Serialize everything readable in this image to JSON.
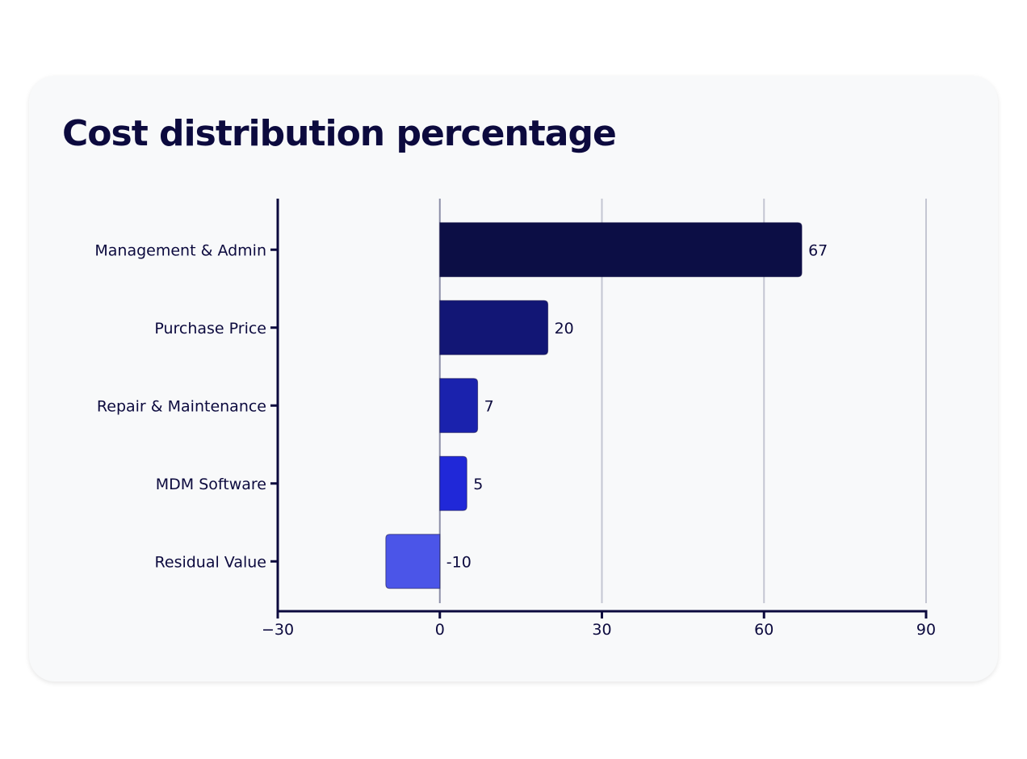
{
  "chart_data": {
    "type": "bar",
    "orientation": "horizontal",
    "title": "Cost distribution percentage",
    "categories": [
      "Management & Admin",
      "Purchase Price",
      "Repair & Maintenance",
      "MDM Software",
      "Residual Value"
    ],
    "values": [
      67,
      20,
      7,
      5,
      -10
    ],
    "value_labels": [
      "67",
      "20",
      "7",
      "5",
      "-10"
    ],
    "xlim": [
      -30,
      90
    ],
    "xticks": [
      -30,
      0,
      30,
      60,
      90
    ],
    "xtick_labels": [
      "−30",
      "0",
      "30",
      "60",
      "90"
    ],
    "xlabel": "",
    "ylabel": "",
    "grid": true,
    "colors": [
      "#0c0e45",
      "#121675",
      "#1a22ad",
      "#2028d8",
      "#4b55e8"
    ]
  }
}
